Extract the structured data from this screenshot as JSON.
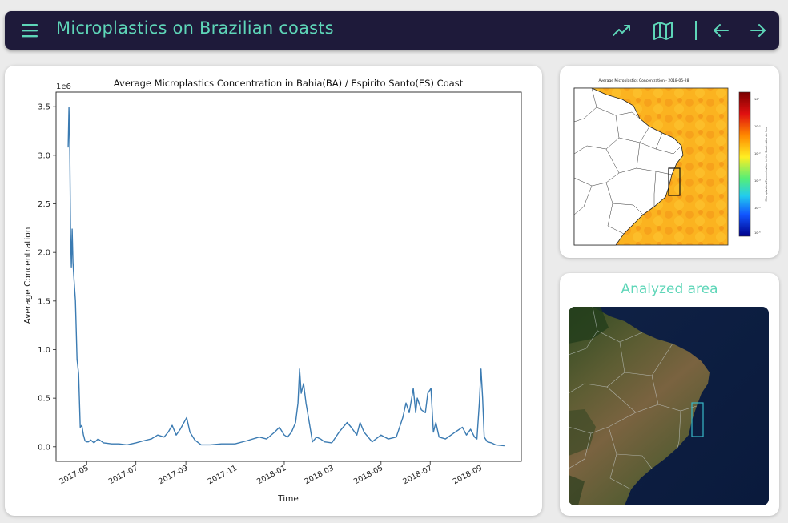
{
  "header": {
    "title": "Microplastics on Brazilian coasts",
    "icons": [
      "menu-icon",
      "trending-up-icon",
      "map-icon",
      "arrow-left-icon",
      "arrow-right-icon"
    ],
    "accent": "#5ed6b8",
    "background": "#1e1a3a"
  },
  "main_chart": {
    "title": "Average Microplastics Concentration in Bahia(BA)  / Espirito Santo(ES) Coast",
    "multiplier": "1e6",
    "xlabel": "Time",
    "ylabel": "Average Concentration",
    "line_color": "#3b7bb2"
  },
  "chart_data": {
    "type": "line",
    "title": "Average Microplastics Concentration in Bahia(BA)  / Espirito Santo(ES) Coast",
    "xlabel": "Time",
    "ylabel": "Average Concentration",
    "y_multiplier": "1e6",
    "ylim": [
      -0.15,
      3.65
    ],
    "xlim": [
      "2017-03-24",
      "2018-10-22"
    ],
    "x_ticks": [
      "2017-05",
      "2017-07",
      "2017-09",
      "2017-11",
      "2018-01",
      "2018-03",
      "2018-05",
      "2018-07",
      "2018-09"
    ],
    "y_ticks": [
      "0.0",
      "0.5",
      "1.0",
      "1.5",
      "2.0",
      "2.5",
      "3.0",
      "3.5"
    ],
    "grid": false,
    "series": [
      {
        "x": [
          "2017-04-08",
          "2017-04-09",
          "2017-04-10",
          "2017-04-11",
          "2017-04-12",
          "2017-04-13",
          "2017-04-14",
          "2017-04-15",
          "2017-04-17",
          "2017-04-19",
          "2017-04-21",
          "2017-04-23",
          "2017-04-25",
          "2017-04-27",
          "2017-04-29",
          "2017-05-01",
          "2017-05-03",
          "2017-05-06",
          "2017-05-10",
          "2017-05-15",
          "2017-05-22",
          "2017-06-01",
          "2017-06-10",
          "2017-06-20",
          "2017-07-01",
          "2017-07-10",
          "2017-07-20",
          "2017-07-28",
          "2017-08-05",
          "2017-08-10",
          "2017-08-15",
          "2017-08-20",
          "2017-08-25",
          "2017-08-29",
          "2017-09-02",
          "2017-09-06",
          "2017-09-12",
          "2017-09-20",
          "2017-10-01",
          "2017-10-15",
          "2017-11-01",
          "2017-11-15",
          "2017-12-01",
          "2017-12-10",
          "2017-12-20",
          "2017-12-26",
          "2018-01-01",
          "2018-01-05",
          "2018-01-10",
          "2018-01-15",
          "2018-01-18",
          "2018-01-20",
          "2018-01-22",
          "2018-01-25",
          "2018-01-28",
          "2018-02-01",
          "2018-02-05",
          "2018-02-10",
          "2018-02-15",
          "2018-02-20",
          "2018-03-01",
          "2018-03-10",
          "2018-03-20",
          "2018-03-25",
          "2018-04-01",
          "2018-04-05",
          "2018-04-10",
          "2018-04-20",
          "2018-05-01",
          "2018-05-10",
          "2018-05-20",
          "2018-05-28",
          "2018-06-01",
          "2018-06-05",
          "2018-06-08",
          "2018-06-10",
          "2018-06-13",
          "2018-06-15",
          "2018-06-20",
          "2018-06-25",
          "2018-06-28",
          "2018-07-02",
          "2018-07-05",
          "2018-07-08",
          "2018-07-12",
          "2018-07-20",
          "2018-08-01",
          "2018-08-10",
          "2018-08-15",
          "2018-08-20",
          "2018-08-25",
          "2018-08-28",
          "2018-08-31",
          "2018-09-02",
          "2018-09-04",
          "2018-09-06",
          "2018-09-10",
          "2018-09-15",
          "2018-09-20",
          "2018-10-01"
        ],
        "values": [
          3.08,
          3.49,
          3.1,
          2.2,
          1.85,
          2.24,
          1.9,
          1.75,
          1.5,
          0.9,
          0.75,
          0.2,
          0.22,
          0.12,
          0.06,
          0.05,
          0.05,
          0.07,
          0.04,
          0.08,
          0.04,
          0.03,
          0.03,
          0.02,
          0.04,
          0.06,
          0.08,
          0.12,
          0.1,
          0.15,
          0.22,
          0.12,
          0.18,
          0.24,
          0.3,
          0.15,
          0.07,
          0.02,
          0.02,
          0.03,
          0.03,
          0.06,
          0.1,
          0.08,
          0.15,
          0.2,
          0.12,
          0.1,
          0.15,
          0.25,
          0.45,
          0.8,
          0.55,
          0.65,
          0.45,
          0.25,
          0.05,
          0.1,
          0.08,
          0.05,
          0.04,
          0.15,
          0.25,
          0.2,
          0.12,
          0.25,
          0.15,
          0.05,
          0.12,
          0.08,
          0.1,
          0.3,
          0.45,
          0.35,
          0.5,
          0.6,
          0.35,
          0.5,
          0.38,
          0.35,
          0.55,
          0.6,
          0.15,
          0.25,
          0.1,
          0.08,
          0.15,
          0.2,
          0.12,
          0.18,
          0.1,
          0.08,
          0.45,
          0.8,
          0.5,
          0.1,
          0.05,
          0.04,
          0.02,
          0.01
        ]
      }
    ]
  },
  "map_small": {
    "title": "Average Microplastics Concentration - 2018-05-28",
    "colorbar_label": "Microplastics Concentration in the South Atlantic Sea",
    "colorbar_ticks": [
      "10⁰",
      "10⁻¹",
      "10⁻²",
      "10⁻³",
      "10⁻⁴",
      "10⁻⁵"
    ]
  },
  "map_satellite": {
    "title": "Analyzed area"
  }
}
